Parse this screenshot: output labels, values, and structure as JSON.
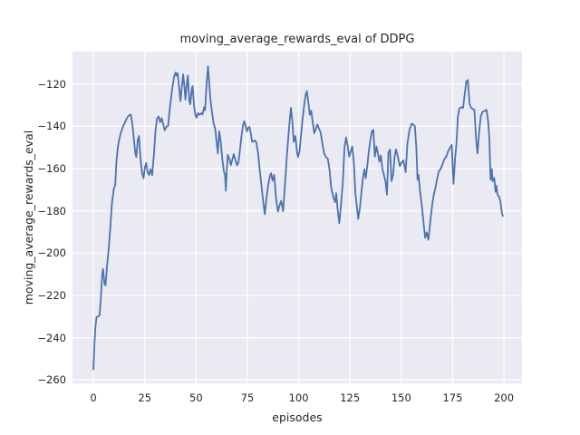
{
  "figure": {
    "background": "#ffffff"
  },
  "chart_data": {
    "type": "line",
    "title": "moving_average_rewards_eval of DDPG",
    "xlabel": "episodes",
    "ylabel": "moving_average_rewards_eval",
    "grid": true,
    "legend": null,
    "plot_background": "#eaeaf2",
    "grid_color": "#ffffff",
    "line_color": "#4c72b0",
    "text_color": "#262626",
    "xlim": [
      -10.2,
      208.8
    ],
    "ylim": [
      -261.6,
      -104.7
    ],
    "x_ticks": [
      0,
      25,
      50,
      75,
      100,
      125,
      150,
      175,
      200
    ],
    "x_tick_labels": [
      "0",
      "25",
      "50",
      "75",
      "100",
      "125",
      "150",
      "175",
      "200"
    ],
    "y_ticks": [
      -120,
      -140,
      -160,
      -180,
      -200,
      -220,
      -240,
      -260
    ],
    "y_tick_labels": [
      "−120",
      "−140",
      "−160",
      "−180",
      "−200",
      "−220",
      "−240",
      "−260"
    ],
    "series": [
      {
        "name": "moving_average_rewards_eval",
        "points": [
          [
            0,
            -255.0
          ],
          [
            0.5,
            -243.0
          ],
          [
            1,
            -234.5
          ],
          [
            1.5,
            -230.3
          ],
          [
            2.2,
            -230.0
          ],
          [
            3,
            -229.4
          ],
          [
            3.6,
            -221.0
          ],
          [
            4.3,
            -210.0
          ],
          [
            4.7,
            -207.4
          ],
          [
            5.4,
            -214.5
          ],
          [
            5.9,
            -215.2
          ],
          [
            6.6,
            -206.7
          ],
          [
            7.4,
            -198.1
          ],
          [
            8.2,
            -188.0
          ],
          [
            9,
            -176.5
          ],
          [
            10,
            -169.3
          ],
          [
            10.6,
            -168.1
          ],
          [
            11.2,
            -156.5
          ],
          [
            11.9,
            -149.7
          ],
          [
            12.6,
            -146.2
          ],
          [
            13.4,
            -142.8
          ],
          [
            14.4,
            -140.2
          ],
          [
            15.4,
            -138.0
          ],
          [
            16.3,
            -136.2
          ],
          [
            17.3,
            -134.9
          ],
          [
            18.2,
            -134.4
          ],
          [
            19,
            -139.0
          ],
          [
            19.7,
            -146.0
          ],
          [
            20.4,
            -152.5
          ],
          [
            20.9,
            -154.5
          ],
          [
            21.6,
            -146.5
          ],
          [
            22.2,
            -144.6
          ],
          [
            22.9,
            -155.3
          ],
          [
            23.7,
            -162.2
          ],
          [
            24.4,
            -164.6
          ],
          [
            25.1,
            -159.5
          ],
          [
            25.7,
            -157.4
          ],
          [
            26.4,
            -161.7
          ],
          [
            27.1,
            -163.1
          ],
          [
            27.8,
            -160.3
          ],
          [
            28.6,
            -163.1
          ],
          [
            29.5,
            -153.0
          ],
          [
            30.3,
            -141.5
          ],
          [
            31,
            -136.3
          ],
          [
            31.8,
            -135.3
          ],
          [
            32.5,
            -138.1
          ],
          [
            33.3,
            -136.2
          ],
          [
            34,
            -139.0
          ],
          [
            34.7,
            -141.9
          ],
          [
            35.6,
            -140.2
          ],
          [
            36.4,
            -139.8
          ],
          [
            37,
            -133.5
          ],
          [
            37.8,
            -127.0
          ],
          [
            38.5,
            -121.5
          ],
          [
            39.3,
            -116.6
          ],
          [
            40,
            -114.6
          ],
          [
            40.4,
            -116.0
          ],
          [
            41,
            -114.9
          ],
          [
            41.7,
            -121.0
          ],
          [
            42.4,
            -128.1
          ],
          [
            43.1,
            -121.0
          ],
          [
            43.7,
            -115.5
          ],
          [
            44.3,
            -121.0
          ],
          [
            44.8,
            -127.4
          ],
          [
            45.4,
            -121.0
          ],
          [
            46,
            -116.0
          ],
          [
            46.7,
            -128.0
          ],
          [
            47.2,
            -129.6
          ],
          [
            47.9,
            -122.5
          ],
          [
            48.3,
            -121.0
          ],
          [
            49,
            -130.0
          ],
          [
            49.6,
            -134.3
          ],
          [
            50.2,
            -136.0
          ],
          [
            50.9,
            -133.8
          ],
          [
            51.6,
            -134.6
          ],
          [
            52.4,
            -133.9
          ],
          [
            53.1,
            -134.5
          ],
          [
            53.9,
            -131.0
          ],
          [
            54.4,
            -132.4
          ],
          [
            55,
            -122.0
          ],
          [
            55.8,
            -111.7
          ],
          [
            56.4,
            -119.0
          ],
          [
            57,
            -127.5
          ],
          [
            57.8,
            -133.5
          ],
          [
            58.5,
            -138.5
          ],
          [
            59.3,
            -141.0
          ],
          [
            60,
            -147.5
          ],
          [
            60.6,
            -152.9
          ],
          [
            61.3,
            -142.4
          ],
          [
            62,
            -147.0
          ],
          [
            62.8,
            -155.5
          ],
          [
            63.6,
            -161.5
          ],
          [
            64.1,
            -163.0
          ],
          [
            64.5,
            -170.5
          ],
          [
            65,
            -160.0
          ],
          [
            65.5,
            -153.5
          ],
          [
            66.2,
            -155.5
          ],
          [
            67,
            -158.4
          ],
          [
            67.7,
            -155.5
          ],
          [
            68.4,
            -153.2
          ],
          [
            69.2,
            -156.0
          ],
          [
            70,
            -158.5
          ],
          [
            70.7,
            -157.0
          ],
          [
            71.4,
            -151.2
          ],
          [
            72.1,
            -144.8
          ],
          [
            73,
            -139.0
          ],
          [
            73.5,
            -137.6
          ],
          [
            74.1,
            -139.5
          ],
          [
            74.8,
            -142.4
          ],
          [
            75.4,
            -140.8
          ],
          [
            76,
            -140.3
          ],
          [
            76.6,
            -143.1
          ],
          [
            77.3,
            -147.3
          ],
          [
            78,
            -147.1
          ],
          [
            78.7,
            -146.7
          ],
          [
            79.4,
            -147.7
          ],
          [
            80.2,
            -152.5
          ],
          [
            81,
            -160.5
          ],
          [
            81.9,
            -168.5
          ],
          [
            82.5,
            -174.0
          ],
          [
            83.5,
            -181.6
          ],
          [
            84.4,
            -173.1
          ],
          [
            85.1,
            -168.2
          ],
          [
            86,
            -163.5
          ],
          [
            86.6,
            -162.2
          ],
          [
            87.3,
            -165.8
          ],
          [
            88.1,
            -163.0
          ],
          [
            89,
            -174.5
          ],
          [
            89.9,
            -180.3
          ],
          [
            90.7,
            -177.5
          ],
          [
            91.5,
            -175.2
          ],
          [
            92.4,
            -180.2
          ],
          [
            93.3,
            -168.0
          ],
          [
            94.2,
            -155.0
          ],
          [
            95.2,
            -142.0
          ],
          [
            96.2,
            -131.3
          ],
          [
            96.9,
            -137.5
          ],
          [
            97.6,
            -147.4
          ],
          [
            98.4,
            -144.6
          ],
          [
            99.2,
            -152.5
          ],
          [
            99.7,
            -154.5
          ],
          [
            100.4,
            -151.6
          ],
          [
            101.1,
            -144.5
          ],
          [
            101.8,
            -137.4
          ],
          [
            102.6,
            -130.5
          ],
          [
            103.4,
            -125.0
          ],
          [
            104,
            -123.4
          ],
          [
            104.8,
            -129.5
          ],
          [
            105.4,
            -134.6
          ],
          [
            106.1,
            -132.6
          ],
          [
            106.9,
            -138.5
          ],
          [
            107.6,
            -143.3
          ],
          [
            108.4,
            -141.0
          ],
          [
            109.1,
            -139.2
          ],
          [
            110,
            -141.3
          ],
          [
            110.6,
            -142.6
          ],
          [
            111.5,
            -147.8
          ],
          [
            112.4,
            -152.8
          ],
          [
            113.3,
            -154.6
          ],
          [
            114.2,
            -155.3
          ],
          [
            115,
            -160.5
          ],
          [
            115.8,
            -168.8
          ],
          [
            116.5,
            -172.0
          ],
          [
            117.2,
            -174.4
          ],
          [
            117.7,
            -175.9
          ],
          [
            118.3,
            -171.7
          ],
          [
            119,
            -179.5
          ],
          [
            119.8,
            -185.9
          ],
          [
            120.7,
            -176.0
          ],
          [
            121.5,
            -166.5
          ],
          [
            122.3,
            -150.0
          ],
          [
            123.1,
            -145.3
          ],
          [
            123.9,
            -149.5
          ],
          [
            124.6,
            -154.4
          ],
          [
            125.3,
            -152.0
          ],
          [
            126.1,
            -149.6
          ],
          [
            126.9,
            -157.5
          ],
          [
            127.6,
            -171.5
          ],
          [
            128.2,
            -177.0
          ],
          [
            129,
            -183.8
          ],
          [
            129.9,
            -178.0
          ],
          [
            130.5,
            -171.7
          ],
          [
            131.3,
            -164.5
          ],
          [
            132,
            -160.3
          ],
          [
            132.7,
            -164.6
          ],
          [
            133.5,
            -158.0
          ],
          [
            134.2,
            -151.6
          ],
          [
            135,
            -146.0
          ],
          [
            135.7,
            -142.3
          ],
          [
            136.4,
            -141.7
          ],
          [
            137.1,
            -154.4
          ],
          [
            137.9,
            -149.6
          ],
          [
            138.6,
            -153.0
          ],
          [
            139.3,
            -156.7
          ],
          [
            140,
            -153.8
          ],
          [
            140.8,
            -160.3
          ],
          [
            141.6,
            -163.2
          ],
          [
            142.3,
            -166.1
          ],
          [
            143,
            -172.4
          ],
          [
            143.7,
            -152.4
          ],
          [
            144.5,
            -151.0
          ],
          [
            145.2,
            -165.9
          ],
          [
            146,
            -163.0
          ],
          [
            146.7,
            -154.5
          ],
          [
            147.4,
            -150.9
          ],
          [
            148.2,
            -154.0
          ],
          [
            149.3,
            -158.9
          ],
          [
            150.2,
            -157.0
          ],
          [
            151,
            -156.1
          ],
          [
            152.1,
            -161.7
          ],
          [
            153,
            -148.0
          ],
          [
            154,
            -141.6
          ],
          [
            155,
            -138.8
          ],
          [
            156,
            -139.3
          ],
          [
            156.6,
            -140.0
          ],
          [
            157.3,
            -150.0
          ],
          [
            157.9,
            -165.3
          ],
          [
            158.4,
            -163.0
          ],
          [
            159.1,
            -170.5
          ],
          [
            159.9,
            -176.5
          ],
          [
            160.6,
            -183.1
          ],
          [
            161.6,
            -192.7
          ],
          [
            162.3,
            -190.2
          ],
          [
            163.2,
            -193.7
          ],
          [
            164.2,
            -184.4
          ],
          [
            165,
            -177.5
          ],
          [
            165.8,
            -172.4
          ],
          [
            166.7,
            -168.8
          ],
          [
            167.5,
            -164.5
          ],
          [
            168.3,
            -161.2
          ],
          [
            169.2,
            -160.2
          ],
          [
            170.1,
            -157.8
          ],
          [
            171,
            -155.4
          ],
          [
            171.9,
            -154.4
          ],
          [
            172.9,
            -151.6
          ],
          [
            173.9,
            -149.8
          ],
          [
            174.6,
            -148.8
          ],
          [
            175.4,
            -167.2
          ],
          [
            176.2,
            -155.0
          ],
          [
            176.9,
            -147.5
          ],
          [
            177.6,
            -135.3
          ],
          [
            178.3,
            -131.6
          ],
          [
            179.2,
            -131.0
          ],
          [
            180.1,
            -131.3
          ],
          [
            180.9,
            -124.8
          ],
          [
            181.7,
            -118.8
          ],
          [
            182.4,
            -118.1
          ],
          [
            183.3,
            -129.6
          ],
          [
            184.1,
            -131.4
          ],
          [
            185,
            -131.9
          ],
          [
            185.6,
            -132.3
          ],
          [
            186.4,
            -146.0
          ],
          [
            187.1,
            -152.8
          ],
          [
            187.9,
            -143.0
          ],
          [
            188.7,
            -135.3
          ],
          [
            189.6,
            -133.1
          ],
          [
            190.6,
            -132.8
          ],
          [
            191.5,
            -132.2
          ],
          [
            192.3,
            -137.5
          ],
          [
            192.9,
            -146.0
          ],
          [
            193.5,
            -165.3
          ],
          [
            194.1,
            -160.3
          ],
          [
            194.5,
            -166.0
          ],
          [
            195.3,
            -164.5
          ],
          [
            195.9,
            -171.0
          ],
          [
            196.3,
            -168.1
          ],
          [
            196.9,
            -172.4
          ],
          [
            197.6,
            -173.2
          ],
          [
            198.3,
            -175.6
          ],
          [
            199,
            -181.0
          ],
          [
            199.5,
            -182.4
          ]
        ]
      }
    ]
  }
}
